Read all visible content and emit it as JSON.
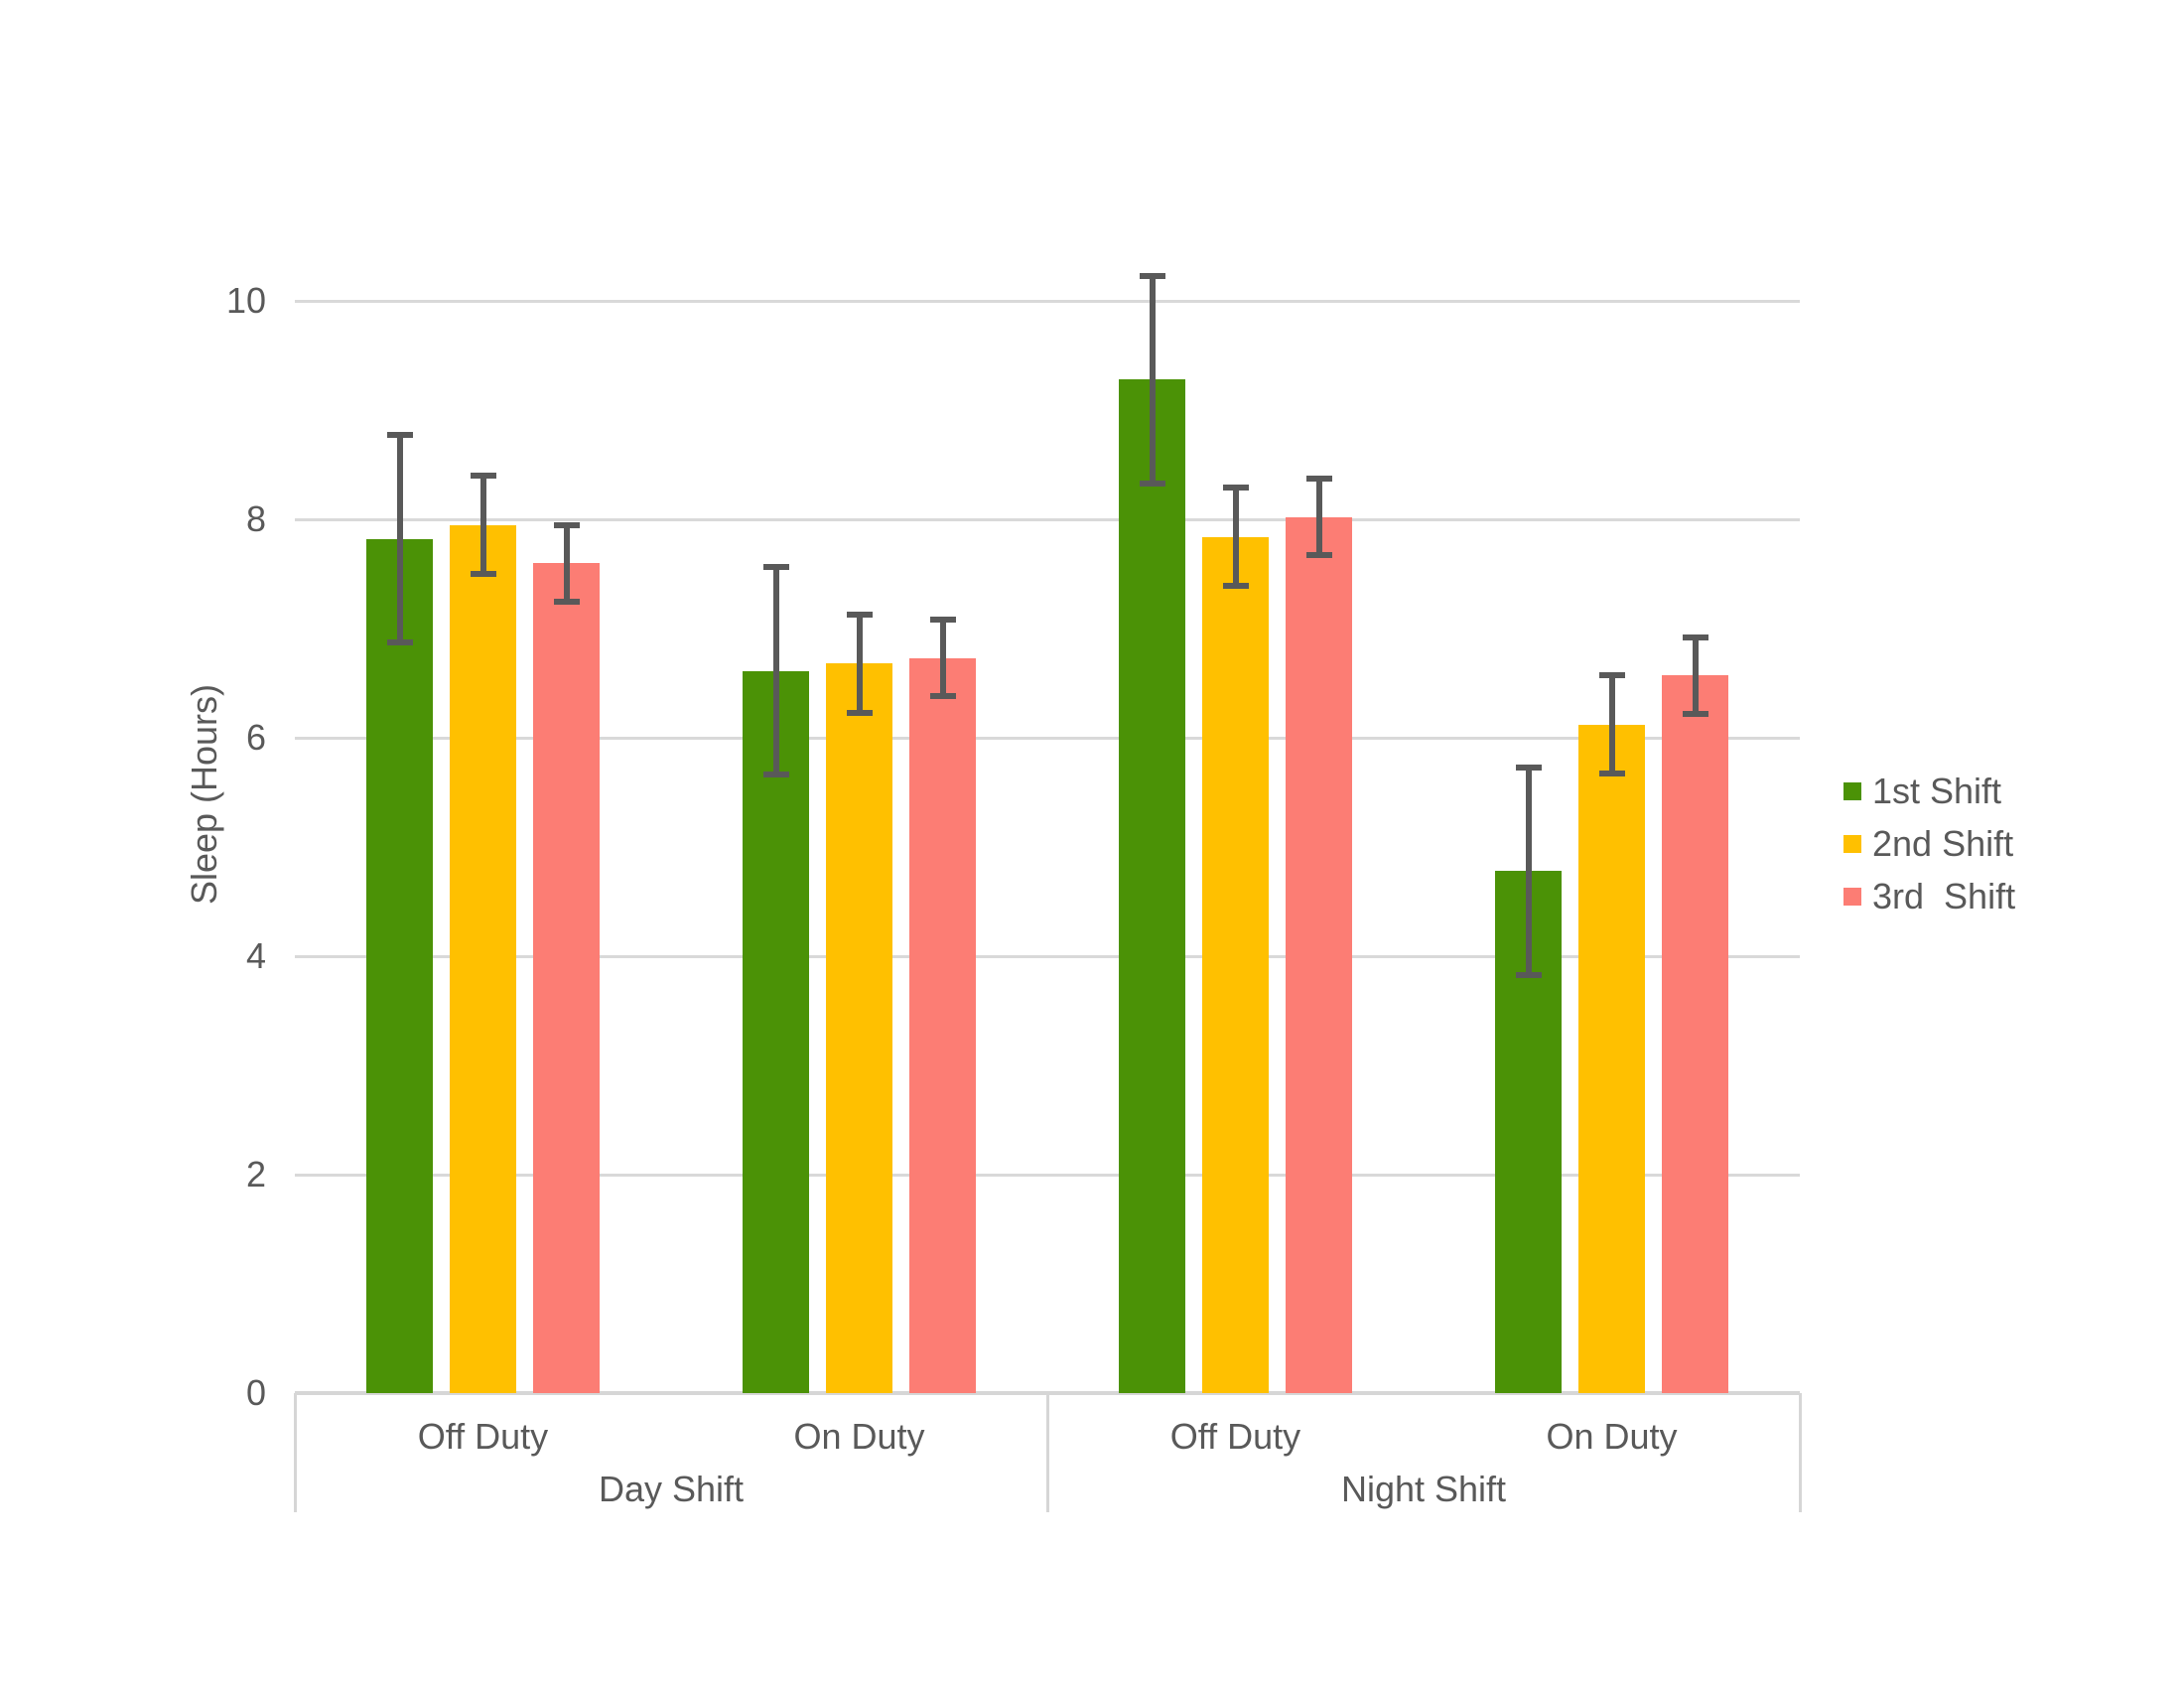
{
  "chart_data": {
    "type": "bar",
    "title": "",
    "ylabel": "Sleep (Hours)",
    "ylim": [
      0,
      10
    ],
    "yticks": [
      0,
      2,
      4,
      6,
      8,
      10
    ],
    "ytick_labels": [
      "0",
      "2",
      "4",
      "6",
      "8",
      "10"
    ],
    "grid": "horizontal-only",
    "legend_position": "right-middle",
    "group_labels_level1": [
      "Day Shift",
      "Night Shift"
    ],
    "group_labels_level2": [
      "Off Duty",
      "On Duty",
      "Off Duty",
      "On Duty"
    ],
    "series": [
      {
        "name": "1st Shift",
        "legend_label": "1st Shift",
        "color": "#4B9206",
        "values": [
          7.82,
          6.61,
          9.28,
          4.78
        ],
        "error": 0.95
      },
      {
        "name": "2nd Shift",
        "legend_label": "2nd Shift",
        "color": "#FFC000",
        "values": [
          7.95,
          6.68,
          7.84,
          6.12
        ],
        "error": 0.45
      },
      {
        "name": "3rd Shift",
        "legend_label": "3rd  Shift",
        "color": "#FC7D74",
        "values": [
          7.6,
          6.73,
          8.02,
          6.57
        ],
        "error": 0.35
      }
    ],
    "error_bar_color": "#595959",
    "gridline_color": "#D9D9D9",
    "axis_line_color": "#D6D6D6",
    "text_color": "#595959",
    "background_color": "#FFFFFF"
  }
}
